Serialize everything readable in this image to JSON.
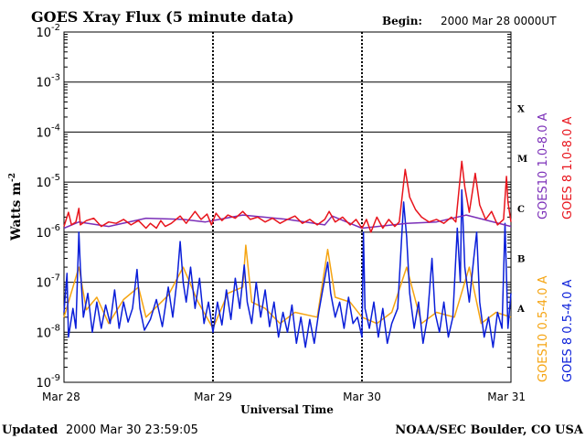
{
  "header": {
    "title": "GOES Xray Flux (5 minute data)",
    "begin_label": "Begin:",
    "begin_value": "2000 Mar 28 0000UT"
  },
  "footer": {
    "updated_label": "Updated",
    "updated_value": "2000 Mar 30 23:59:05",
    "credit": "NOAA/SEC Boulder, CO USA"
  },
  "chart_data": {
    "type": "line",
    "title": "GOES Xray Flux (5 minute data)",
    "xlabel": "Universal Time",
    "ylabel": "Watts m",
    "ylabel_superscript": "-2",
    "y_scale": "log",
    "ylim": [
      1e-09,
      0.01
    ],
    "y_ticks": [
      {
        "base": "10",
        "exp": "-2",
        "value": 0.01
      },
      {
        "base": "10",
        "exp": "-3",
        "value": 0.001
      },
      {
        "base": "10",
        "exp": "-4",
        "value": 0.0001
      },
      {
        "base": "10",
        "exp": "-5",
        "value": 1e-05
      },
      {
        "base": "10",
        "exp": "-6",
        "value": 1e-06
      },
      {
        "base": "10",
        "exp": "-7",
        "value": 1e-07
      },
      {
        "base": "10",
        "exp": "-8",
        "value": 1e-08
      },
      {
        "base": "10",
        "exp": "-9",
        "value": 1e-09
      }
    ],
    "x_ticks": [
      "Mar 28",
      "Mar 29",
      "Mar 30",
      "Mar 31"
    ],
    "xlim_days": [
      0,
      3
    ],
    "flare_classes": [
      {
        "label": "X",
        "value": 0.0003
      },
      {
        "label": "M",
        "value": 3e-05
      },
      {
        "label": "C",
        "value": 3e-06
      },
      {
        "label": "B",
        "value": 3e-07
      },
      {
        "label": "A",
        "value": 3e-08
      }
    ],
    "grid": true,
    "legend_position": "right",
    "series": [
      {
        "name": "GOES10 1.0-8.0 A",
        "color": "#7b2fb8",
        "points": [
          [
            0.0,
            1.2e-06
          ],
          [
            0.1,
            1.6e-06
          ],
          [
            0.3,
            1.3e-06
          ],
          [
            0.55,
            1.9e-06
          ],
          [
            0.8,
            1.8e-06
          ],
          [
            0.95,
            1.6e-06
          ],
          [
            1.2,
            2.2e-06
          ],
          [
            1.5,
            1.8e-06
          ],
          [
            1.75,
            1.4e-06
          ],
          [
            1.8,
            2.1e-06
          ],
          [
            2.0,
            1.2e-06
          ],
          [
            2.3,
            1.5e-06
          ],
          [
            2.5,
            1.6e-06
          ],
          [
            2.7,
            2.2e-06
          ],
          [
            3.0,
            1.3e-06
          ]
        ]
      },
      {
        "name": "GOES 8 1.0-8.0 A",
        "color": "#e8141c",
        "points": [
          [
            0.0,
            1.3e-06
          ],
          [
            0.03,
            2.5e-06
          ],
          [
            0.05,
            1.4e-06
          ],
          [
            0.08,
            1.6e-06
          ],
          [
            0.1,
            3e-06
          ],
          [
            0.11,
            1.4e-06
          ],
          [
            0.15,
            1.7e-06
          ],
          [
            0.2,
            1.9e-06
          ],
          [
            0.25,
            1.3e-06
          ],
          [
            0.3,
            1.6e-06
          ],
          [
            0.35,
            1.5e-06
          ],
          [
            0.4,
            1.8e-06
          ],
          [
            0.45,
            1.4e-06
          ],
          [
            0.5,
            1.7e-06
          ],
          [
            0.55,
            1.2e-06
          ],
          [
            0.58,
            1.5e-06
          ],
          [
            0.62,
            1.2e-06
          ],
          [
            0.65,
            1.7e-06
          ],
          [
            0.68,
            1.3e-06
          ],
          [
            0.72,
            1.5e-06
          ],
          [
            0.78,
            2.1e-06
          ],
          [
            0.82,
            1.5e-06
          ],
          [
            0.88,
            2.6e-06
          ],
          [
            0.92,
            1.8e-06
          ],
          [
            0.96,
            2.3e-06
          ],
          [
            0.99,
            1.4e-06
          ],
          [
            1.02,
            2.4e-06
          ],
          [
            1.06,
            1.7e-06
          ],
          [
            1.1,
            2.2e-06
          ],
          [
            1.15,
            1.9e-06
          ],
          [
            1.2,
            2.6e-06
          ],
          [
            1.25,
            1.8e-06
          ],
          [
            1.3,
            2e-06
          ],
          [
            1.35,
            1.6e-06
          ],
          [
            1.4,
            1.9e-06
          ],
          [
            1.45,
            1.5e-06
          ],
          [
            1.5,
            1.8e-06
          ],
          [
            1.55,
            2.1e-06
          ],
          [
            1.6,
            1.5e-06
          ],
          [
            1.65,
            1.8e-06
          ],
          [
            1.7,
            1.4e-06
          ],
          [
            1.75,
            1.8e-06
          ],
          [
            1.78,
            2.6e-06
          ],
          [
            1.82,
            1.6e-06
          ],
          [
            1.87,
            2e-06
          ],
          [
            1.92,
            1.4e-06
          ],
          [
            1.96,
            1.8e-06
          ],
          [
            2.0,
            1.2e-06
          ],
          [
            2.03,
            1.8e-06
          ],
          [
            2.06,
            1e-06
          ],
          [
            2.1,
            2e-06
          ],
          [
            2.14,
            1.2e-06
          ],
          [
            2.18,
            1.8e-06
          ],
          [
            2.22,
            1.3e-06
          ],
          [
            2.25,
            1.6e-06
          ],
          [
            2.29,
            1.8e-05
          ],
          [
            2.32,
            5e-06
          ],
          [
            2.36,
            2.8e-06
          ],
          [
            2.4,
            2e-06
          ],
          [
            2.45,
            1.6e-06
          ],
          [
            2.5,
            1.8e-06
          ],
          [
            2.55,
            1.5e-06
          ],
          [
            2.6,
            2e-06
          ],
          [
            2.63,
            1.6e-06
          ],
          [
            2.67,
            2.6e-05
          ],
          [
            2.69,
            8e-06
          ],
          [
            2.72,
            2.5e-06
          ],
          [
            2.76,
            1.5e-05
          ],
          [
            2.79,
            3.5e-06
          ],
          [
            2.83,
            1.8e-06
          ],
          [
            2.87,
            2.6e-06
          ],
          [
            2.91,
            1.4e-06
          ],
          [
            2.95,
            1.8e-06
          ],
          [
            2.97,
            1.3e-05
          ],
          [
            2.98,
            4e-06
          ],
          [
            3.0,
            1.6e-06
          ]
        ]
      },
      {
        "name": "GOES10 0.5-4.0 A",
        "color": "#f5a411",
        "points": [
          [
            0.0,
            2e-08
          ],
          [
            0.1,
            2e-07
          ],
          [
            0.15,
            2.8e-08
          ],
          [
            0.22,
            5e-08
          ],
          [
            0.3,
            1.5e-08
          ],
          [
            0.4,
            4.5e-08
          ],
          [
            0.5,
            8e-08
          ],
          [
            0.55,
            2e-08
          ],
          [
            0.7,
            5.5e-08
          ],
          [
            0.8,
            2e-07
          ],
          [
            0.9,
            4e-08
          ],
          [
            1.0,
            1.2e-08
          ],
          [
            1.1,
            6e-08
          ],
          [
            1.2,
            8e-08
          ],
          [
            1.22,
            5.5e-07
          ],
          [
            1.26,
            4e-08
          ],
          [
            1.35,
            3e-08
          ],
          [
            1.45,
            1.5e-08
          ],
          [
            1.55,
            2.5e-08
          ],
          [
            1.7,
            2e-08
          ],
          [
            1.77,
            4.5e-07
          ],
          [
            1.82,
            5e-08
          ],
          [
            1.92,
            4e-08
          ],
          [
            2.0,
            2e-08
          ],
          [
            2.1,
            1.5e-08
          ],
          [
            2.2,
            2.5e-08
          ],
          [
            2.3,
            2e-07
          ],
          [
            2.4,
            1.5e-08
          ],
          [
            2.5,
            2.5e-08
          ],
          [
            2.62,
            2e-08
          ],
          [
            2.72,
            2e-07
          ],
          [
            2.8,
            1.5e-08
          ],
          [
            2.9,
            2.5e-08
          ],
          [
            3.0,
            2e-08
          ]
        ]
      },
      {
        "name": "GOES 8 0.5-4.0 A",
        "color": "#0a1ed9",
        "points": [
          [
            0.0,
            2.5e-08
          ],
          [
            0.02,
            1.5e-07
          ],
          [
            0.03,
            8e-09
          ],
          [
            0.06,
            3e-08
          ],
          [
            0.08,
            1.2e-08
          ],
          [
            0.1,
            1e-06
          ],
          [
            0.11,
            2e-07
          ],
          [
            0.13,
            2e-08
          ],
          [
            0.16,
            6e-08
          ],
          [
            0.19,
            1e-08
          ],
          [
            0.22,
            4e-08
          ],
          [
            0.25,
            1.2e-08
          ],
          [
            0.28,
            3.5e-08
          ],
          [
            0.31,
            1.5e-08
          ],
          [
            0.34,
            7e-08
          ],
          [
            0.37,
            1.2e-08
          ],
          [
            0.4,
            4e-08
          ],
          [
            0.43,
            1.6e-08
          ],
          [
            0.46,
            3e-08
          ],
          [
            0.49,
            1.8e-07
          ],
          [
            0.51,
            3e-08
          ],
          [
            0.54,
            1.1e-08
          ],
          [
            0.58,
            1.8e-08
          ],
          [
            0.62,
            4.5e-08
          ],
          [
            0.66,
            1.3e-08
          ],
          [
            0.7,
            8e-08
          ],
          [
            0.73,
            2e-08
          ],
          [
            0.76,
            1.2e-07
          ],
          [
            0.78,
            6.5e-07
          ],
          [
            0.8,
            1e-07
          ],
          [
            0.82,
            4e-08
          ],
          [
            0.85,
            2e-07
          ],
          [
            0.88,
            3e-08
          ],
          [
            0.91,
            1.2e-07
          ],
          [
            0.94,
            1.5e-08
          ],
          [
            0.97,
            4e-08
          ],
          [
            1.0,
            1e-08
          ],
          [
            1.03,
            4e-08
          ],
          [
            1.06,
            1.4e-08
          ],
          [
            1.09,
            7e-08
          ],
          [
            1.12,
            1.8e-08
          ],
          [
            1.15,
            1.2e-07
          ],
          [
            1.18,
            3e-08
          ],
          [
            1.21,
            2.2e-07
          ],
          [
            1.23,
            4e-08
          ],
          [
            1.26,
            1.5e-08
          ],
          [
            1.29,
            1e-07
          ],
          [
            1.32,
            2e-08
          ],
          [
            1.35,
            7e-08
          ],
          [
            1.38,
            1.3e-08
          ],
          [
            1.41,
            4e-08
          ],
          [
            1.44,
            8e-09
          ],
          [
            1.47,
            2.5e-08
          ],
          [
            1.5,
            1e-08
          ],
          [
            1.53,
            3.5e-08
          ],
          [
            1.56,
            6e-09
          ],
          [
            1.59,
            2e-08
          ],
          [
            1.62,
            5e-09
          ],
          [
            1.65,
            1.8e-08
          ],
          [
            1.68,
            6e-09
          ],
          [
            1.71,
            2.5e-08
          ],
          [
            1.74,
            8e-08
          ],
          [
            1.77,
            2.5e-07
          ],
          [
            1.79,
            6e-08
          ],
          [
            1.82,
            2e-08
          ],
          [
            1.85,
            4e-08
          ],
          [
            1.88,
            1.2e-08
          ],
          [
            1.91,
            5e-08
          ],
          [
            1.94,
            1.5e-08
          ],
          [
            1.97,
            2e-08
          ],
          [
            2.0,
            8e-09
          ],
          [
            2.01,
            1e-06
          ],
          [
            2.02,
            3e-08
          ],
          [
            2.05,
            1.2e-08
          ],
          [
            2.08,
            4e-08
          ],
          [
            2.11,
            8e-09
          ],
          [
            2.14,
            3e-08
          ],
          [
            2.17,
            6e-09
          ],
          [
            2.2,
            1.5e-08
          ],
          [
            2.24,
            3e-08
          ],
          [
            2.28,
            4e-06
          ],
          [
            2.3,
            8e-07
          ],
          [
            2.32,
            6e-08
          ],
          [
            2.35,
            1.2e-08
          ],
          [
            2.38,
            4e-08
          ],
          [
            2.41,
            6e-09
          ],
          [
            2.44,
            2e-08
          ],
          [
            2.47,
            3e-07
          ],
          [
            2.49,
            2.5e-08
          ],
          [
            2.52,
            1e-08
          ],
          [
            2.55,
            4e-08
          ],
          [
            2.58,
            8e-09
          ],
          [
            2.61,
            2e-08
          ],
          [
            2.64,
            1.2e-06
          ],
          [
            2.66,
            1e-07
          ],
          [
            2.67,
            7e-06
          ],
          [
            2.69,
            2e-07
          ],
          [
            2.72,
            4e-08
          ],
          [
            2.75,
            3e-07
          ],
          [
            2.77,
            1e-06
          ],
          [
            2.79,
            4e-08
          ],
          [
            2.82,
            8e-09
          ],
          [
            2.85,
            2e-08
          ],
          [
            2.88,
            5e-09
          ],
          [
            2.91,
            2.5e-08
          ],
          [
            2.94,
            1.2e-08
          ],
          [
            2.96,
            1.5e-06
          ],
          [
            2.98,
            1.2e-08
          ],
          [
            3.0,
            6e-08
          ]
        ]
      }
    ]
  }
}
